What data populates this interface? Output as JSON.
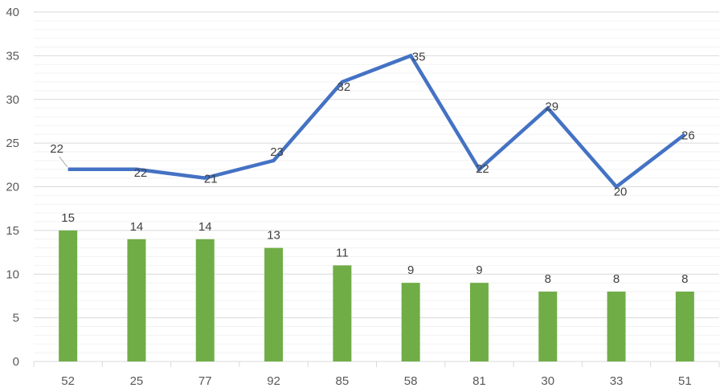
{
  "chart_data": {
    "type": "bar",
    "categories": [
      "52",
      "25",
      "77",
      "92",
      "85",
      "58",
      "81",
      "30",
      "33",
      "51"
    ],
    "ylim": [
      0,
      40
    ],
    "yticks": [
      0,
      5,
      10,
      15,
      20,
      25,
      30,
      35,
      40
    ],
    "grid": true,
    "series": [
      {
        "type": "line",
        "color": "#4472C4",
        "values": [
          22,
          22,
          21,
          23,
          32,
          35,
          22,
          29,
          20,
          26
        ]
      },
      {
        "type": "bar",
        "color": "#70AD47",
        "values": [
          15,
          14,
          14,
          13,
          11,
          9,
          9,
          8,
          8,
          8
        ]
      }
    ]
  }
}
